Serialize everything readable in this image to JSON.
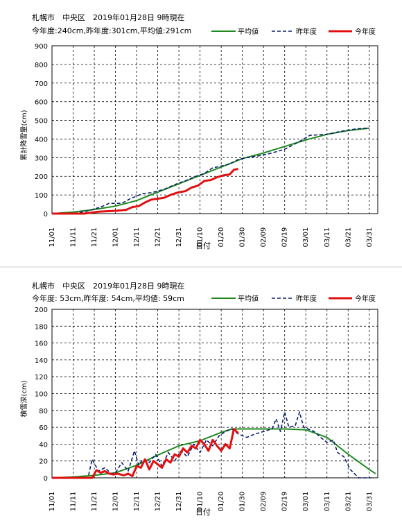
{
  "charts": [
    {
      "title_line1": "札幌市　中央区　2019年01月28日 9時現在",
      "title_line2": "今年度:240cm,昨年度:301cm,平均値:291cm",
      "xlabel": "日付",
      "ylabel": "累計降雪量(cm)"
    },
    {
      "title_line1": "札幌市　中央区　2019年01月28日 9時現在",
      "title_line2": "今年度: 53cm,昨年度: 54cm,平均値: 59cm",
      "xlabel": "日付",
      "ylabel": "積雪深(cm)"
    }
  ],
  "colors": {
    "average": "#1e8a1e",
    "last_year": "#0b1e6e",
    "this_year": "#e01010"
  },
  "chart_data": [
    {
      "type": "line",
      "title": "札幌市　中央区　2019年01月28日 9時現在",
      "xlabel": "日付",
      "ylabel": "累計降雪量(cm)",
      "x_ticks": [
        "11/01",
        "11/11",
        "11/21",
        "12/01",
        "12/11",
        "12/21",
        "12/31",
        "01/10",
        "01/20",
        "01/30",
        "02/09",
        "02/19",
        "03/01",
        "03/11",
        "03/21",
        "03/31"
      ],
      "ylim": [
        0,
        900
      ],
      "y_ticks": [
        0,
        100,
        200,
        300,
        400,
        500,
        600,
        700,
        800,
        900
      ],
      "grid": true,
      "legend_position": "top-right",
      "series": [
        {
          "name": "平均値",
          "style": "solid",
          "x": [
            "11/01",
            "11/11",
            "11/21",
            "12/01",
            "12/11",
            "12/21",
            "12/31",
            "01/10",
            "01/20",
            "01/30",
            "02/09",
            "02/19",
            "03/01",
            "03/11",
            "03/21",
            "03/31"
          ],
          "values": [
            0,
            8,
            22,
            40,
            70,
            115,
            160,
            205,
            250,
            295,
            325,
            360,
            395,
            425,
            445,
            458
          ]
        },
        {
          "name": "昨年度",
          "style": "dashed",
          "x": [
            "11/01",
            "11/11",
            "11/18",
            "11/24",
            "11/28",
            "12/04",
            "12/08",
            "12/14",
            "12/18",
            "12/24",
            "12/30",
            "01/04",
            "01/08",
            "01/12",
            "01/16",
            "01/20",
            "01/24",
            "01/28",
            "02/01",
            "02/07",
            "02/13",
            "02/19",
            "02/25",
            "03/03",
            "03/11",
            "03/17",
            "03/25",
            "03/31"
          ],
          "values": [
            0,
            0,
            15,
            35,
            55,
            55,
            80,
            108,
            112,
            130,
            160,
            180,
            200,
            215,
            245,
            255,
            265,
            290,
            300,
            310,
            325,
            345,
            380,
            420,
            425,
            440,
            455,
            458
          ]
        },
        {
          "name": "今年度",
          "style": "solid",
          "x": [
            "11/01",
            "11/16",
            "11/23",
            "12/01",
            "12/06",
            "12/09",
            "12/12",
            "12/15",
            "12/18",
            "12/21",
            "12/24",
            "12/27",
            "12/31",
            "01/03",
            "01/06",
            "01/09",
            "01/12",
            "01/15",
            "01/18",
            "01/21",
            "01/24",
            "01/26",
            "01/28"
          ],
          "values": [
            0,
            0,
            10,
            15,
            20,
            35,
            40,
            60,
            75,
            80,
            85,
            100,
            115,
            120,
            140,
            150,
            175,
            180,
            195,
            205,
            210,
            235,
            240
          ]
        }
      ]
    },
    {
      "type": "line",
      "title": "札幌市　中央区　2019年01月28日 9時現在",
      "xlabel": "日付",
      "ylabel": "積雪深(cm)",
      "x_ticks": [
        "11/01",
        "11/11",
        "11/21",
        "12/01",
        "12/11",
        "12/21",
        "12/31",
        "01/10",
        "01/20",
        "01/30",
        "02/09",
        "02/19",
        "03/01",
        "03/11",
        "03/21",
        "03/31"
      ],
      "ylim": [
        0,
        200
      ],
      "y_ticks": [
        0,
        20,
        40,
        60,
        80,
        100,
        120,
        140,
        160,
        180,
        200
      ],
      "grid": true,
      "legend_position": "top-right",
      "series": [
        {
          "name": "平均値",
          "style": "solid",
          "x": [
            "11/01",
            "11/11",
            "11/21",
            "12/01",
            "12/11",
            "12/21",
            "12/31",
            "01/10",
            "01/20",
            "01/25",
            "01/30",
            "02/09",
            "02/19",
            "03/01",
            "03/11",
            "03/21",
            "03/31",
            "04/03"
          ],
          "values": [
            0,
            1,
            3,
            6,
            15,
            27,
            38,
            44,
            54,
            58,
            58,
            58,
            58,
            57,
            48,
            28,
            10,
            5
          ]
        },
        {
          "name": "昨年度",
          "style": "dashed",
          "x": [
            "11/01",
            "11/18",
            "11/20",
            "11/23",
            "11/26",
            "11/29",
            "12/01",
            "12/04",
            "12/07",
            "12/10",
            "12/12",
            "12/14",
            "12/17",
            "12/20",
            "12/23",
            "12/26",
            "12/29",
            "01/01",
            "01/04",
            "01/07",
            "01/10",
            "01/13",
            "01/16",
            "01/19",
            "01/22",
            "01/25",
            "01/28",
            "02/01",
            "02/05",
            "02/09",
            "02/13",
            "02/15",
            "02/17",
            "02/19",
            "02/21",
            "02/24",
            "02/26",
            "02/28",
            "03/02",
            "03/05",
            "03/08",
            "03/11",
            "03/14",
            "03/16",
            "03/19",
            "03/22",
            "03/26",
            "03/28",
            "04/01"
          ],
          "values": [
            0,
            0,
            22,
            8,
            12,
            5,
            6,
            18,
            8,
            32,
            15,
            22,
            18,
            28,
            14,
            30,
            20,
            32,
            25,
            40,
            30,
            45,
            38,
            50,
            55,
            58,
            52,
            48,
            52,
            55,
            58,
            70,
            55,
            78,
            60,
            62,
            78,
            60,
            58,
            55,
            48,
            42,
            45,
            30,
            25,
            10,
            0,
            0,
            0
          ]
        },
        {
          "name": "今年度",
          "style": "solid",
          "x": [
            "11/01",
            "11/20",
            "11/22",
            "11/24",
            "11/26",
            "11/28",
            "11/30",
            "12/02",
            "12/05",
            "12/07",
            "12/09",
            "12/11",
            "12/13",
            "12/15",
            "12/17",
            "12/19",
            "12/21",
            "12/23",
            "12/25",
            "12/27",
            "12/29",
            "12/31",
            "01/02",
            "01/04",
            "01/06",
            "01/08",
            "01/10",
            "01/12",
            "01/14",
            "01/16",
            "01/18",
            "01/20",
            "01/22",
            "01/24",
            "01/26",
            "01/28"
          ],
          "values": [
            0,
            0,
            9,
            6,
            8,
            5,
            4,
            5,
            3,
            5,
            2,
            14,
            12,
            22,
            10,
            20,
            16,
            12,
            22,
            18,
            28,
            25,
            35,
            30,
            38,
            35,
            45,
            40,
            32,
            45,
            38,
            32,
            40,
            35,
            58,
            53
          ]
        }
      ]
    }
  ]
}
